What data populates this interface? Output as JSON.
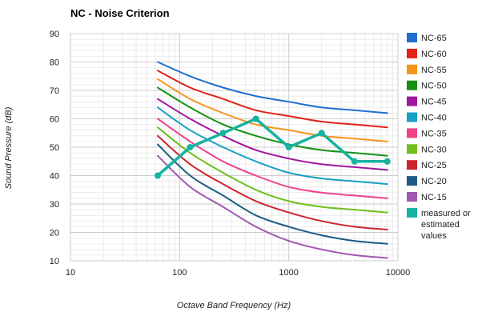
{
  "chart_data": {
    "type": "line",
    "title": "NC - Noise Criterion",
    "xlabel": "Octave Band Frequency (Hz)",
    "ylabel": "Sound Pressure (dB)",
    "x_scale": "log",
    "xlim": [
      10,
      10000
    ],
    "ylim": [
      10,
      90
    ],
    "x_ticks": [
      10,
      100,
      1000,
      10000
    ],
    "x_tick_labels": [
      "10",
      "100",
      "1000",
      "10000"
    ],
    "y_ticks": [
      10,
      20,
      30,
      40,
      50,
      60,
      70,
      80,
      90
    ],
    "grid": true,
    "legend_position": "right",
    "x": [
      63,
      125,
      250,
      500,
      1000,
      2000,
      4000,
      8000
    ],
    "series": [
      {
        "name": "NC-65",
        "color": "#1f6fd1",
        "values": [
          80,
          75,
          71,
          68,
          66,
          64,
          63,
          62
        ]
      },
      {
        "name": "NC-60",
        "color": "#e0221a",
        "values": [
          77,
          71,
          67,
          63,
          61,
          59,
          58,
          57
        ]
      },
      {
        "name": "NC-55",
        "color": "#f7941d",
        "values": [
          74,
          67,
          62,
          58,
          56,
          54,
          53,
          52
        ]
      },
      {
        "name": "NC-50",
        "color": "#129112",
        "values": [
          71,
          64,
          58,
          54,
          51,
          49,
          48,
          47
        ]
      },
      {
        "name": "NC-45",
        "color": "#a0179e",
        "values": [
          67,
          60,
          54,
          49,
          46,
          44,
          43,
          42
        ]
      },
      {
        "name": "NC-40",
        "color": "#17a0c4",
        "values": [
          64,
          56,
          50,
          45,
          41,
          39,
          38,
          37
        ]
      },
      {
        "name": "NC-35",
        "color": "#f0418b",
        "values": [
          60,
          52,
          45,
          40,
          36,
          34,
          33,
          32
        ]
      },
      {
        "name": "NC-30",
        "color": "#6fbf1e",
        "values": [
          57,
          48,
          41,
          35,
          31,
          29,
          28,
          27
        ]
      },
      {
        "name": "NC-25",
        "color": "#c9262e",
        "values": [
          54,
          44,
          37,
          31,
          27,
          24,
          22,
          21
        ]
      },
      {
        "name": "NC-20",
        "color": "#1d5b86",
        "values": [
          51,
          40,
          33,
          26,
          22,
          19,
          17,
          16
        ]
      },
      {
        "name": "NC-15",
        "color": "#a257b1",
        "values": [
          47,
          36,
          29,
          22,
          17,
          14,
          12,
          11
        ]
      },
      {
        "name": "measured or estimated values",
        "legend_lines": [
          "measured or",
          "estimated",
          "values"
        ],
        "color": "#17b3a0",
        "markers": true,
        "values": [
          40,
          50,
          55,
          60,
          50,
          55,
          45,
          45
        ]
      }
    ]
  }
}
